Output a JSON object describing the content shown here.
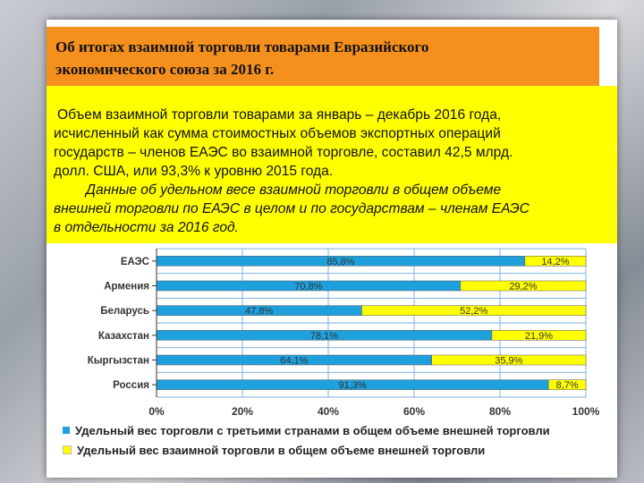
{
  "header": {
    "title_line1": "Об итогах взаимной торговли товарами Евразийского",
    "title_line2": "экономического союза за 2016 г."
  },
  "text": {
    "line1": "Объем взаимной торговли товарами за январь – декабрь 2016 года,",
    "line2": "исчисленный как сумма стоимостных объемов экспортных операций",
    "line3": "государств – членов ЕАЭС во взаимной торговле, составил 42,5 млрд.",
    "line4": "долл. США, или 93,3% к уровню 2015 года.",
    "line5": "Данные об удельном весе взаимной торговли в общем объеме",
    "line6": "внешней торговли по ЕАЭС в целом и по государствам – членам ЕАЭС",
    "line7": "в отдельности за 2016 год."
  },
  "colors": {
    "blue": "#1ea0dc",
    "yellow": "#ffff00",
    "grid": "#7fb2e0"
  },
  "chart_data": {
    "type": "bar",
    "orientation": "horizontal",
    "stacked": true,
    "categories": [
      "ЕАЭС",
      "Армения",
      "Беларусь",
      "Казахстан",
      "Кыргызстан",
      "Россия"
    ],
    "series": [
      {
        "name": "Удельный вес торговли с третьими странами в общем объеме внешней торговли",
        "values": [
          85.8,
          70.8,
          47.8,
          78.1,
          64.1,
          91.3
        ],
        "labels": [
          "85,8%",
          "70,8%",
          "47,8%",
          "78,1%",
          "64,1%",
          "91,3%"
        ]
      },
      {
        "name": "Удельный вес взаимной торговли в общем объеме внешней торговли",
        "values": [
          14.2,
          29.2,
          52.2,
          21.9,
          35.9,
          8.7
        ],
        "labels": [
          "14,2%",
          "29,2%",
          "52,2%",
          "21,9%",
          "35,9%",
          "8,7%"
        ]
      }
    ],
    "xlim": [
      0,
      100
    ],
    "xticks": [
      "0%",
      "20%",
      "40%",
      "60%",
      "80%",
      "100%"
    ],
    "grid": true,
    "legend_placement": "bottom"
  }
}
